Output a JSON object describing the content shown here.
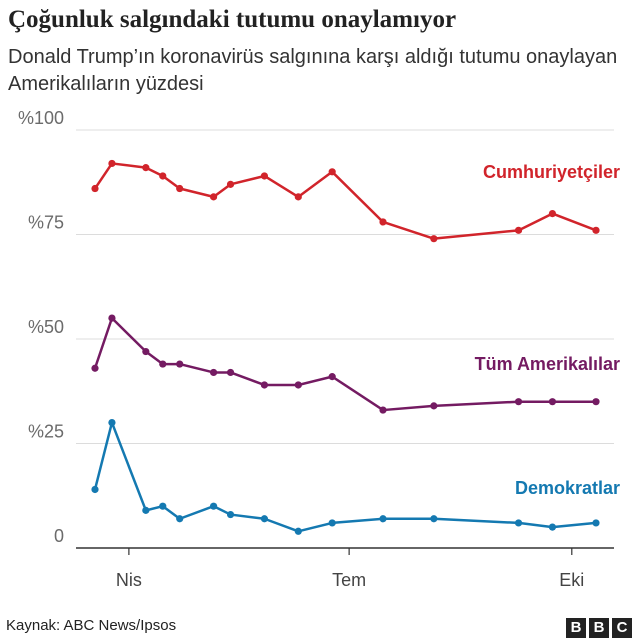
{
  "header": {
    "title": "Çoğunluk salgındaki tutumu onaylamıyor",
    "subtitle": "Donald Trump’ın koronavirüs salgınına karşı aldığı tutumu onaylayan Amerikalıların yüzdesi"
  },
  "footer": {
    "source": "Kaynak: ABC News/Ipsos",
    "logo_letters": [
      "B",
      "B",
      "C"
    ]
  },
  "chart_data": {
    "type": "line",
    "title": "Çoğunluk salgındaki tutumu onaylamıyor",
    "xlabel": "",
    "ylabel": "",
    "ylim": [
      0,
      100
    ],
    "ytick_values": [
      0,
      25,
      50,
      75,
      100
    ],
    "ytick_labels": [
      "0",
      "%25",
      "%50",
      "%75",
      "%100"
    ],
    "xticks": [
      {
        "label": "Nis",
        "x": 14
      },
      {
        "label": "Tem",
        "x": 105
      },
      {
        "label": "Eki",
        "x": 197
      }
    ],
    "x": [
      0,
      7,
      14,
      21,
      28,
      42,
      49,
      63,
      77,
      91,
      112,
      133,
      168,
      182,
      197
    ],
    "series": [
      {
        "name": "Cumhuriyetçiler",
        "color": "#d1242b",
        "x": [
          0,
          7,
          21,
          28,
          35,
          49,
          56,
          70,
          84,
          98,
          119,
          140,
          175,
          189,
          207
        ],
        "values": [
          86,
          92,
          91,
          89,
          86,
          84,
          87,
          89,
          84,
          90,
          78,
          74,
          76,
          80,
          76
        ]
      },
      {
        "name": "Tüm Amerikalılar",
        "color": "#741b62",
        "x": [
          0,
          7,
          21,
          28,
          35,
          49,
          56,
          70,
          84,
          98,
          119,
          140,
          175,
          189,
          207
        ],
        "values": [
          43,
          55,
          47,
          44,
          44,
          42,
          42,
          39,
          39,
          41,
          33,
          34,
          35,
          35,
          35
        ]
      },
      {
        "name": "Demokratlar",
        "color": "#1479b1",
        "x": [
          0,
          7,
          21,
          28,
          35,
          49,
          56,
          70,
          84,
          98,
          119,
          140,
          175,
          189,
          207
        ],
        "values": [
          14,
          30,
          9,
          10,
          7,
          10,
          8,
          7,
          4,
          6,
          7,
          7,
          6,
          5,
          6
        ]
      }
    ]
  }
}
